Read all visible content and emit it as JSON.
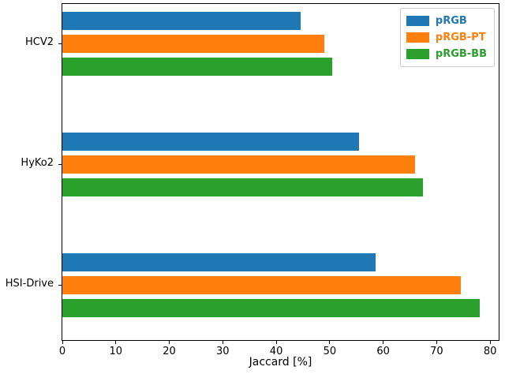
{
  "figure": {
    "background": "#ffffff"
  },
  "chart_data": {
    "type": "bar",
    "orientation": "horizontal",
    "title": "",
    "xlabel": "Jaccard [%]",
    "ylabel": "",
    "categories": [
      "HCV2",
      "HyKo2",
      "HSI-Drive"
    ],
    "series": [
      {
        "name": "pRGB",
        "color": "#1f77b4",
        "values": [
          44.5,
          55.5,
          58.5
        ]
      },
      {
        "name": "pRGB-PT",
        "color": "#ff7f0e",
        "values": [
          49.0,
          66.0,
          74.5
        ]
      },
      {
        "name": "pRGB-BB",
        "color": "#2ca02c",
        "values": [
          50.5,
          67.5,
          78.0
        ]
      }
    ],
    "xlim": [
      0,
      81.6
    ],
    "xticks": [
      0,
      10,
      20,
      30,
      40,
      50,
      60,
      70,
      80
    ],
    "grid": false,
    "legend": {
      "position": "upper-right",
      "labels_colored": true
    }
  }
}
